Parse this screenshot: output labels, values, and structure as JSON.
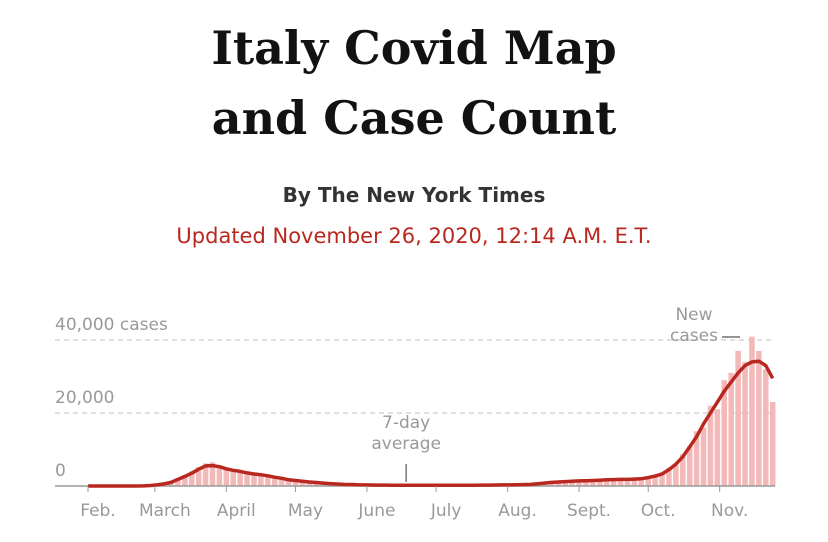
{
  "chart_data": {
    "type": "bar",
    "title": [
      "Italy Covid Map",
      "and Case Count"
    ],
    "byline": "By The New York Times",
    "updated": "Updated November 26, 2020, 12:14 A.M. E.T.",
    "x": [
      0,
      3,
      6,
      9,
      12,
      15,
      18,
      21,
      24,
      27,
      30,
      33,
      36,
      39,
      42,
      45,
      48,
      51,
      54,
      57,
      60,
      63,
      66,
      69,
      72,
      75,
      78,
      81,
      84,
      87,
      90,
      93,
      96,
      99,
      102,
      105,
      108,
      111,
      114,
      117,
      120,
      123,
      126,
      129,
      132,
      135,
      138,
      141,
      144,
      147,
      150,
      153,
      156,
      159,
      162,
      165,
      168,
      171,
      174,
      177,
      180,
      183,
      186,
      189,
      192,
      195,
      198,
      201,
      204,
      207,
      210,
      213,
      216,
      219,
      222,
      225,
      228,
      231,
      234,
      237,
      240,
      243,
      246,
      249,
      252,
      255,
      258,
      261,
      264,
      267,
      270,
      273,
      276,
      279,
      282,
      285,
      288,
      291,
      294,
      297
    ],
    "series": [
      {
        "name": "New cases",
        "type": "bar",
        "color": "#f3b9b9",
        "values": [
          0,
          0,
          0,
          0,
          0,
          0,
          0,
          10,
          60,
          200,
          400,
          800,
          1300,
          2000,
          3000,
          4000,
          5200,
          6200,
          6500,
          5000,
          4800,
          4500,
          4200,
          3500,
          3800,
          3000,
          2700,
          2600,
          2100,
          1900,
          1500,
          1600,
          1200,
          1000,
          1100,
          800,
          600,
          650,
          500,
          400,
          350,
          300,
          280,
          300,
          250,
          220,
          250,
          200,
          190,
          230,
          180,
          210,
          190,
          170,
          220,
          180,
          240,
          250,
          270,
          300,
          270,
          320,
          350,
          400,
          500,
          650,
          900,
          1100,
          1000,
          1300,
          1400,
          1300,
          1500,
          1600,
          1500,
          1800,
          1900,
          1600,
          1800,
          2000,
          2100,
          2500,
          2800,
          3700,
          5000,
          5800,
          8800,
          10900,
          15000,
          16000,
          22000,
          21000,
          29000,
          31000,
          37000,
          34000,
          40900,
          37000,
          32000,
          23000
        ]
      },
      {
        "name": "7-day average",
        "type": "line",
        "color": "#b8281f",
        "values": [
          0,
          0,
          0,
          0,
          0,
          0,
          0,
          3,
          40,
          150,
          300,
          600,
          1000,
          1800,
          2600,
          3500,
          4600,
          5500,
          5600,
          5300,
          4700,
          4300,
          4000,
          3600,
          3300,
          3100,
          2800,
          2400,
          2100,
          1700,
          1500,
          1300,
          1100,
          950,
          800,
          650,
          550,
          450,
          400,
          330,
          300,
          280,
          260,
          240,
          230,
          220,
          210,
          200,
          200,
          190,
          190,
          190,
          190,
          190,
          200,
          210,
          220,
          240,
          260,
          280,
          290,
          300,
          330,
          380,
          450,
          600,
          800,
          1000,
          1100,
          1200,
          1300,
          1400,
          1450,
          1500,
          1600,
          1700,
          1750,
          1800,
          1800,
          1900,
          2000,
          2300,
          2700,
          3300,
          4500,
          6000,
          8000,
          10700,
          13500,
          17000,
          20000,
          23000,
          26000,
          28500,
          31000,
          33000,
          34000,
          34200,
          33000,
          29500
        ]
      }
    ],
    "xlim": [
      0,
      298
    ],
    "xticks": [
      {
        "value": 0,
        "label": "Feb."
      },
      {
        "value": 29,
        "label": "March"
      },
      {
        "value": 60,
        "label": "April"
      },
      {
        "value": 90,
        "label": "May"
      },
      {
        "value": 121,
        "label": "June"
      },
      {
        "value": 151,
        "label": "July"
      },
      {
        "value": 182,
        "label": "Aug."
      },
      {
        "value": 213,
        "label": "Sept."
      },
      {
        "value": 243,
        "label": "Oct."
      },
      {
        "value": 274,
        "label": "Nov."
      }
    ],
    "ylim": [
      0,
      40000
    ],
    "yticks": [
      0,
      {
        "value": 20000,
        "label": "20,000"
      },
      {
        "value": 40000,
        "label": "40,000 cases"
      }
    ],
    "grid": true
  }
}
